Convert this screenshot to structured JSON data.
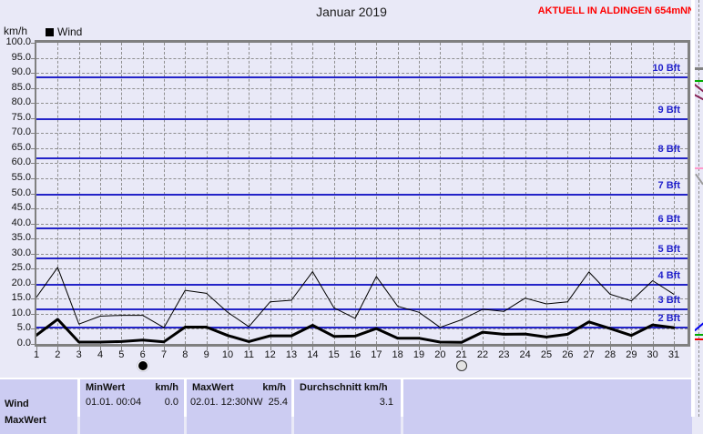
{
  "header": {
    "title": "Januar 2019",
    "banner": "AKTUELL IN ALDINGEN 654mNN"
  },
  "legend": {
    "label": "Wind"
  },
  "y_axis": {
    "unit_label": "km/h",
    "min": 0,
    "max": 100,
    "step": 5
  },
  "colors": {
    "page_bg": "#e9e9f7",
    "table_cell_bg": "#ccccf2",
    "beaufort_blue": "#2323c8",
    "banner_red": "#ff0000",
    "grid_gray": "#8f8f8f",
    "series_black": "#000000"
  },
  "chart_data": {
    "type": "line",
    "title": "Januar 2019",
    "xlabel": "",
    "ylabel": "km/h",
    "ylim": [
      0,
      100
    ],
    "ytick_step": 5,
    "grid": "dashed",
    "legend_position": "top-left",
    "x": [
      1,
      2,
      3,
      4,
      5,
      6,
      7,
      8,
      9,
      10,
      11,
      12,
      13,
      14,
      15,
      16,
      17,
      18,
      19,
      20,
      21,
      22,
      23,
      24,
      25,
      26,
      27,
      28,
      29,
      30,
      31
    ],
    "series": [
      {
        "id": "wind-peak-thin-line",
        "name": "Wind",
        "stroke_width": 1,
        "values": [
          15.5,
          25.4,
          6.6,
          9.2,
          9.5,
          9.5,
          5.4,
          17.8,
          16.8,
          10.5,
          5.7,
          14.0,
          14.5,
          24.0,
          12.0,
          8.5,
          22.4,
          12.5,
          10.5,
          5.5,
          8.0,
          11.5,
          10.8,
          15.2,
          13.3,
          14.0,
          23.9,
          16.5,
          14.3,
          21.0,
          16.5
        ]
      },
      {
        "id": "wind-average-thick-line",
        "name": "Wind",
        "stroke_width": 3,
        "values": [
          2.9,
          8.2,
          0.6,
          0.6,
          0.8,
          1.3,
          0.7,
          5.6,
          5.6,
          2.8,
          0.8,
          2.7,
          2.7,
          6.2,
          2.5,
          2.6,
          5.1,
          1.9,
          1.9,
          0.6,
          0.5,
          3.9,
          3.2,
          3.3,
          2.3,
          3.2,
          7.3,
          5.1,
          2.8,
          6.3,
          5.4
        ]
      }
    ],
    "beaufort_lines": [
      {
        "value": 5.5,
        "label": "2 Bft"
      },
      {
        "value": 11.5,
        "label": "3 Bft"
      },
      {
        "value": 19.5,
        "label": "4 Bft"
      },
      {
        "value": 28.5,
        "label": "5 Bft"
      },
      {
        "value": 38.5,
        "label": "6 Bft"
      },
      {
        "value": 49.5,
        "label": "7 Bft"
      },
      {
        "value": 61.5,
        "label": "8 Bft"
      },
      {
        "value": 74.5,
        "label": "9 Bft"
      },
      {
        "value": 88.5,
        "label": "10 Bft"
      }
    ],
    "moon_markers": [
      {
        "day": 6,
        "type": "new-moon"
      },
      {
        "day": 21,
        "type": "full-moon"
      }
    ]
  },
  "footer_table": {
    "row_label": "Wind",
    "next_row_label_partial": "MaxWert",
    "min": {
      "header": "MinWert",
      "unit": "km/h",
      "value_left": "01.01.  00:04",
      "value_right": "0.0"
    },
    "max": {
      "header": "MaxWert",
      "unit": "km/h",
      "value_left": "02.01.  12:30NW",
      "value_right": "25.4"
    },
    "avg": {
      "header": "Durchschnitt km/h",
      "value": "3.1"
    }
  }
}
